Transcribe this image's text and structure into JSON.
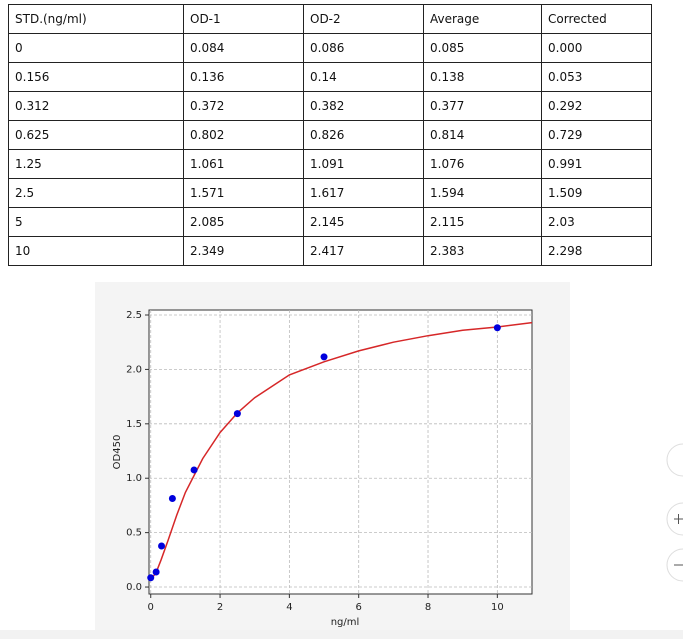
{
  "table": {
    "header": [
      "STD.(ng/ml)",
      "OD-1",
      "OD-2",
      "Average",
      "Corrected"
    ],
    "rows": [
      [
        "0",
        "0.084",
        "0.086",
        "0.085",
        "0.000"
      ],
      [
        "0.156",
        "0.136",
        "0.14",
        "0.138",
        "0.053"
      ],
      [
        "0.312",
        "0.372",
        "0.382",
        "0.377",
        "0.292"
      ],
      [
        "0.625",
        "0.802",
        "0.826",
        "0.814",
        "0.729"
      ],
      [
        "1.25",
        "1.061",
        "1.091",
        "1.076",
        "0.991"
      ],
      [
        "2.5",
        "1.571",
        "1.617",
        "1.594",
        "1.509"
      ],
      [
        "5",
        "2.085",
        "2.145",
        "2.115",
        "2.03"
      ],
      [
        "10",
        "2.349",
        "2.417",
        "2.383",
        "2.298"
      ]
    ]
  },
  "chart_data": {
    "type": "scatter",
    "xlabel": "ng/ml",
    "ylabel": "OD450",
    "x": [
      0,
      0.156,
      0.312,
      0.625,
      1.25,
      2.5,
      5,
      10
    ],
    "values": [
      0.085,
      0.138,
      0.377,
      0.814,
      1.076,
      1.594,
      2.115,
      2.383
    ],
    "color": "#0000dd",
    "curve": {
      "color": "#d62728",
      "x": [
        0,
        0.1,
        0.2,
        0.3,
        0.5,
        0.75,
        1,
        1.5,
        2,
        2.5,
        3,
        4,
        5,
        6,
        7,
        8,
        9,
        10,
        11
      ],
      "values": [
        0.07,
        0.11,
        0.17,
        0.25,
        0.43,
        0.66,
        0.87,
        1.18,
        1.42,
        1.6,
        1.74,
        1.95,
        2.07,
        2.17,
        2.25,
        2.31,
        2.36,
        2.39,
        2.43
      ]
    },
    "xlim": [
      -0.05,
      11
    ],
    "ylim": [
      -0.064,
      2.546
    ],
    "xticks": [
      0,
      2,
      4,
      6,
      8,
      10
    ],
    "yticks": [
      {
        "value": 0,
        "label": "0.0"
      },
      {
        "value": 0.5,
        "label": "0.5"
      },
      {
        "value": 1,
        "label": "1.0"
      },
      {
        "value": 1.5,
        "label": "1.5"
      },
      {
        "value": 2,
        "label": "2.0"
      },
      {
        "value": 2.5,
        "label": "2.5"
      }
    ],
    "grid": true
  }
}
